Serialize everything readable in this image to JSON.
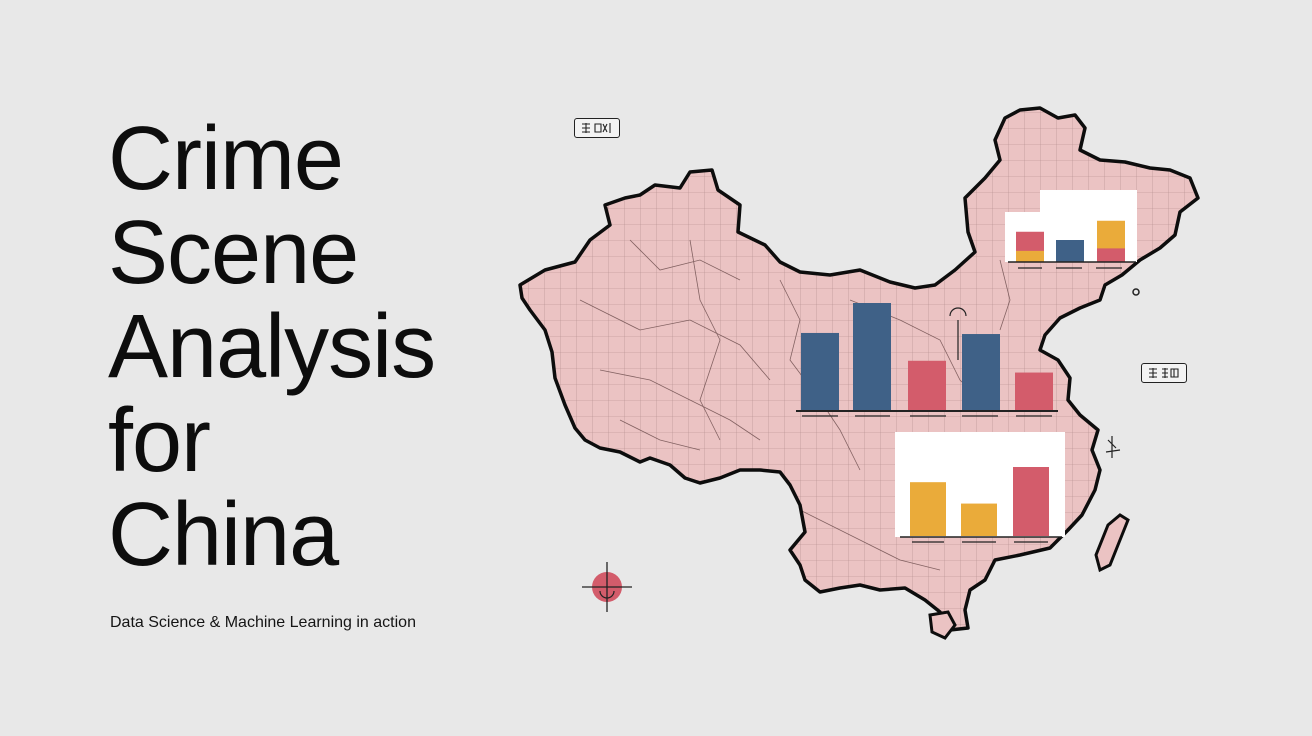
{
  "title_lines": [
    "Crime",
    "Scene",
    "Analysis",
    "for",
    "China"
  ],
  "subtitle": "Data Science & Machine Learning in action",
  "colors": {
    "background": "#e8e8e8",
    "map_fill": "#ebc3c3",
    "bar_blue": "#3f6187",
    "bar_red": "#d35c6b",
    "bar_yellow": "#eaab3a"
  },
  "charts": [
    {
      "name": "top-right-chart",
      "bars": [
        {
          "stack": [
            0.45,
            0.55
          ],
          "colors": [
            "bar_yellow",
            "bar_red"
          ]
        },
        {
          "stack": [
            0.8
          ],
          "colors": [
            "bar_blue"
          ]
        },
        {
          "stack": [
            0.55,
            0.75
          ],
          "colors": [
            "bar_red",
            "bar_yellow"
          ]
        }
      ]
    },
    {
      "name": "center-chart",
      "bars": [
        {
          "value": 0.72,
          "color": "bar_blue"
        },
        {
          "value": 1.0,
          "color": "bar_blue"
        },
        {
          "value": 0.46,
          "color": "bar_red"
        },
        {
          "value": 0.71,
          "color": "bar_blue"
        },
        {
          "value": 0.35,
          "color": "bar_red"
        }
      ]
    },
    {
      "name": "bottom-chart",
      "bars": [
        {
          "value": 0.78,
          "color": "bar_yellow"
        },
        {
          "value": 0.47,
          "color": "bar_yellow"
        },
        {
          "value": 1.0,
          "color": "bar_red"
        }
      ]
    }
  ]
}
